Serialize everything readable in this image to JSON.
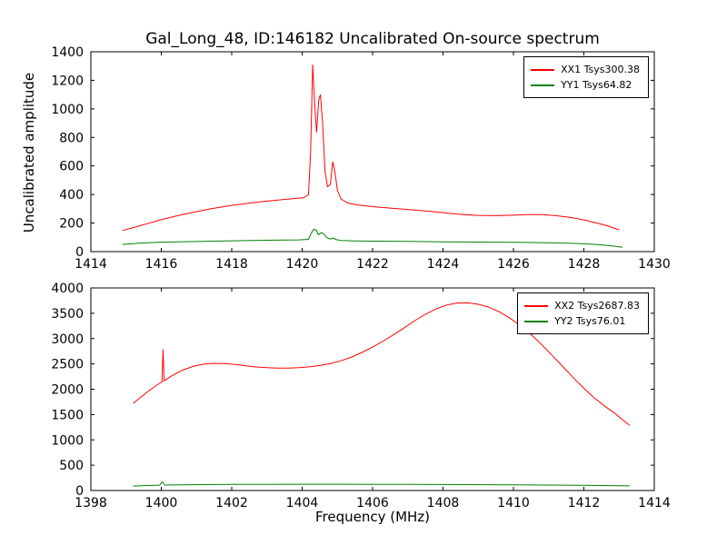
{
  "figure": {
    "background": "#ffffff",
    "frame_color": "#000000"
  },
  "chart_data": [
    {
      "type": "line",
      "title": "Gal_Long_48, ID:146182 Uncalibrated On-source spectrum",
      "xlabel": "",
      "ylabel": "Uncalibrated amplitude",
      "xlim": [
        1414,
        1430
      ],
      "ylim": [
        0,
        1400
      ],
      "xticks": [
        1414,
        1416,
        1418,
        1420,
        1422,
        1424,
        1426,
        1428,
        1430
      ],
      "yticks": [
        0,
        200,
        400,
        600,
        800,
        1000,
        1200,
        1400
      ],
      "grid": false,
      "legend_position": "upper right",
      "series": [
        {
          "name": "XX1 Tsys300.38",
          "color": "#ff0000",
          "points": [
            [
              1414.9,
              148
            ],
            [
              1415.2,
              168
            ],
            [
              1415.55,
              192
            ],
            [
              1415.95,
              220
            ],
            [
              1416.4,
              248
            ],
            [
              1416.9,
              275
            ],
            [
              1417.4,
              300
            ],
            [
              1417.95,
              322
            ],
            [
              1418.5,
              340
            ],
            [
              1419.0,
              354
            ],
            [
              1419.45,
              364
            ],
            [
              1419.8,
              372
            ],
            [
              1420.05,
              378
            ],
            [
              1420.18,
              400
            ],
            [
              1420.24,
              700
            ],
            [
              1420.3,
              1310
            ],
            [
              1420.36,
              1020
            ],
            [
              1420.41,
              835
            ],
            [
              1420.47,
              1060
            ],
            [
              1420.52,
              1100
            ],
            [
              1420.58,
              900
            ],
            [
              1420.65,
              560
            ],
            [
              1420.72,
              455
            ],
            [
              1420.8,
              470
            ],
            [
              1420.87,
              630
            ],
            [
              1420.93,
              560
            ],
            [
              1421.0,
              430
            ],
            [
              1421.1,
              370
            ],
            [
              1421.3,
              340
            ],
            [
              1421.6,
              326
            ],
            [
              1422.0,
              315
            ],
            [
              1422.5,
              305
            ],
            [
              1423.0,
              295
            ],
            [
              1423.5,
              285
            ],
            [
              1424.0,
              273
            ],
            [
              1424.5,
              261
            ],
            [
              1425.0,
              254
            ],
            [
              1425.5,
              252
            ],
            [
              1426.0,
              255
            ],
            [
              1426.4,
              259
            ],
            [
              1426.8,
              259
            ],
            [
              1427.2,
              252
            ],
            [
              1427.6,
              240
            ],
            [
              1428.0,
              222
            ],
            [
              1428.4,
              198
            ],
            [
              1428.7,
              178
            ],
            [
              1429.0,
              152
            ]
          ]
        },
        {
          "name": "YY1 Tsys64.82",
          "color": "#008000",
          "points": [
            [
              1414.9,
              50
            ],
            [
              1415.4,
              60
            ],
            [
              1416.0,
              66
            ],
            [
              1416.8,
              70
            ],
            [
              1417.6,
              74
            ],
            [
              1418.4,
              77
            ],
            [
              1419.2,
              80
            ],
            [
              1419.9,
              82
            ],
            [
              1420.18,
              86
            ],
            [
              1420.26,
              130
            ],
            [
              1420.33,
              158
            ],
            [
              1420.4,
              150
            ],
            [
              1420.46,
              118
            ],
            [
              1420.53,
              132
            ],
            [
              1420.6,
              128
            ],
            [
              1420.7,
              98
            ],
            [
              1420.8,
              88
            ],
            [
              1420.88,
              96
            ],
            [
              1420.96,
              84
            ],
            [
              1421.1,
              78
            ],
            [
              1421.5,
              75
            ],
            [
              1422.0,
              73
            ],
            [
              1423.0,
              71
            ],
            [
              1424.0,
              69
            ],
            [
              1425.0,
              67
            ],
            [
              1426.0,
              65
            ],
            [
              1427.0,
              62
            ],
            [
              1427.8,
              57
            ],
            [
              1428.4,
              49
            ],
            [
              1428.8,
              40
            ],
            [
              1429.1,
              30
            ]
          ]
        }
      ]
    },
    {
      "type": "line",
      "title": "",
      "xlabel": "Frequency (MHz)",
      "ylabel": "",
      "xlim": [
        1398,
        1414
      ],
      "ylim": [
        0,
        4000
      ],
      "xticks": [
        1398,
        1400,
        1402,
        1404,
        1406,
        1408,
        1410,
        1412,
        1414
      ],
      "yticks": [
        0,
        500,
        1000,
        1500,
        2000,
        2500,
        3000,
        3500,
        4000
      ],
      "grid": false,
      "legend_position": "upper right",
      "series": [
        {
          "name": "XX2 Tsys2687.83",
          "color": "#ff0000",
          "points": [
            [
              1399.2,
              1720
            ],
            [
              1399.4,
              1835
            ],
            [
              1399.6,
              1945
            ],
            [
              1399.8,
              2045
            ],
            [
              1399.97,
              2125
            ],
            [
              1400.02,
              2145
            ],
            [
              1400.05,
              2790
            ],
            [
              1400.08,
              2165
            ],
            [
              1400.3,
              2265
            ],
            [
              1400.6,
              2375
            ],
            [
              1400.9,
              2450
            ],
            [
              1401.2,
              2495
            ],
            [
              1401.5,
              2512
            ],
            [
              1401.8,
              2508
            ],
            [
              1402.1,
              2488
            ],
            [
              1402.4,
              2462
            ],
            [
              1402.7,
              2440
            ],
            [
              1403.0,
              2426
            ],
            [
              1403.3,
              2418
            ],
            [
              1403.6,
              2418
            ],
            [
              1403.9,
              2426
            ],
            [
              1404.2,
              2442
            ],
            [
              1404.5,
              2468
            ],
            [
              1404.8,
              2508
            ],
            [
              1405.1,
              2562
            ],
            [
              1405.4,
              2635
            ],
            [
              1405.7,
              2726
            ],
            [
              1406.0,
              2832
            ],
            [
              1406.3,
              2950
            ],
            [
              1406.6,
              3078
            ],
            [
              1406.9,
              3215
            ],
            [
              1407.2,
              3355
            ],
            [
              1407.5,
              3480
            ],
            [
              1407.8,
              3585
            ],
            [
              1408.1,
              3662
            ],
            [
              1408.4,
              3702
            ],
            [
              1408.7,
              3706
            ],
            [
              1409.0,
              3678
            ],
            [
              1409.3,
              3620
            ],
            [
              1409.6,
              3528
            ],
            [
              1409.9,
              3405
            ],
            [
              1410.2,
              3255
            ],
            [
              1410.5,
              3080
            ],
            [
              1410.8,
              2882
            ],
            [
              1411.1,
              2668
            ],
            [
              1411.4,
              2448
            ],
            [
              1411.7,
              2228
            ],
            [
              1412.0,
              2018
            ],
            [
              1412.3,
              1828
            ],
            [
              1412.6,
              1662
            ],
            [
              1412.9,
              1512
            ],
            [
              1413.1,
              1398
            ],
            [
              1413.3,
              1285
            ]
          ]
        },
        {
          "name": "YY2 Tsys76.01",
          "color": "#008000",
          "points": [
            [
              1399.2,
              88
            ],
            [
              1399.6,
              98
            ],
            [
              1399.95,
              106
            ],
            [
              1400.03,
              168
            ],
            [
              1400.1,
              108
            ],
            [
              1400.6,
              113
            ],
            [
              1401.2,
              117
            ],
            [
              1402.0,
              120
            ],
            [
              1403.0,
              122
            ],
            [
              1404.0,
              123
            ],
            [
              1405.0,
              123
            ],
            [
              1406.0,
              122
            ],
            [
              1407.0,
              120
            ],
            [
              1408.0,
              118
            ],
            [
              1409.0,
              115
            ],
            [
              1410.0,
              112
            ],
            [
              1411.0,
              107
            ],
            [
              1412.0,
              102
            ],
            [
              1412.7,
              97
            ],
            [
              1413.3,
              91
            ]
          ]
        }
      ]
    }
  ]
}
